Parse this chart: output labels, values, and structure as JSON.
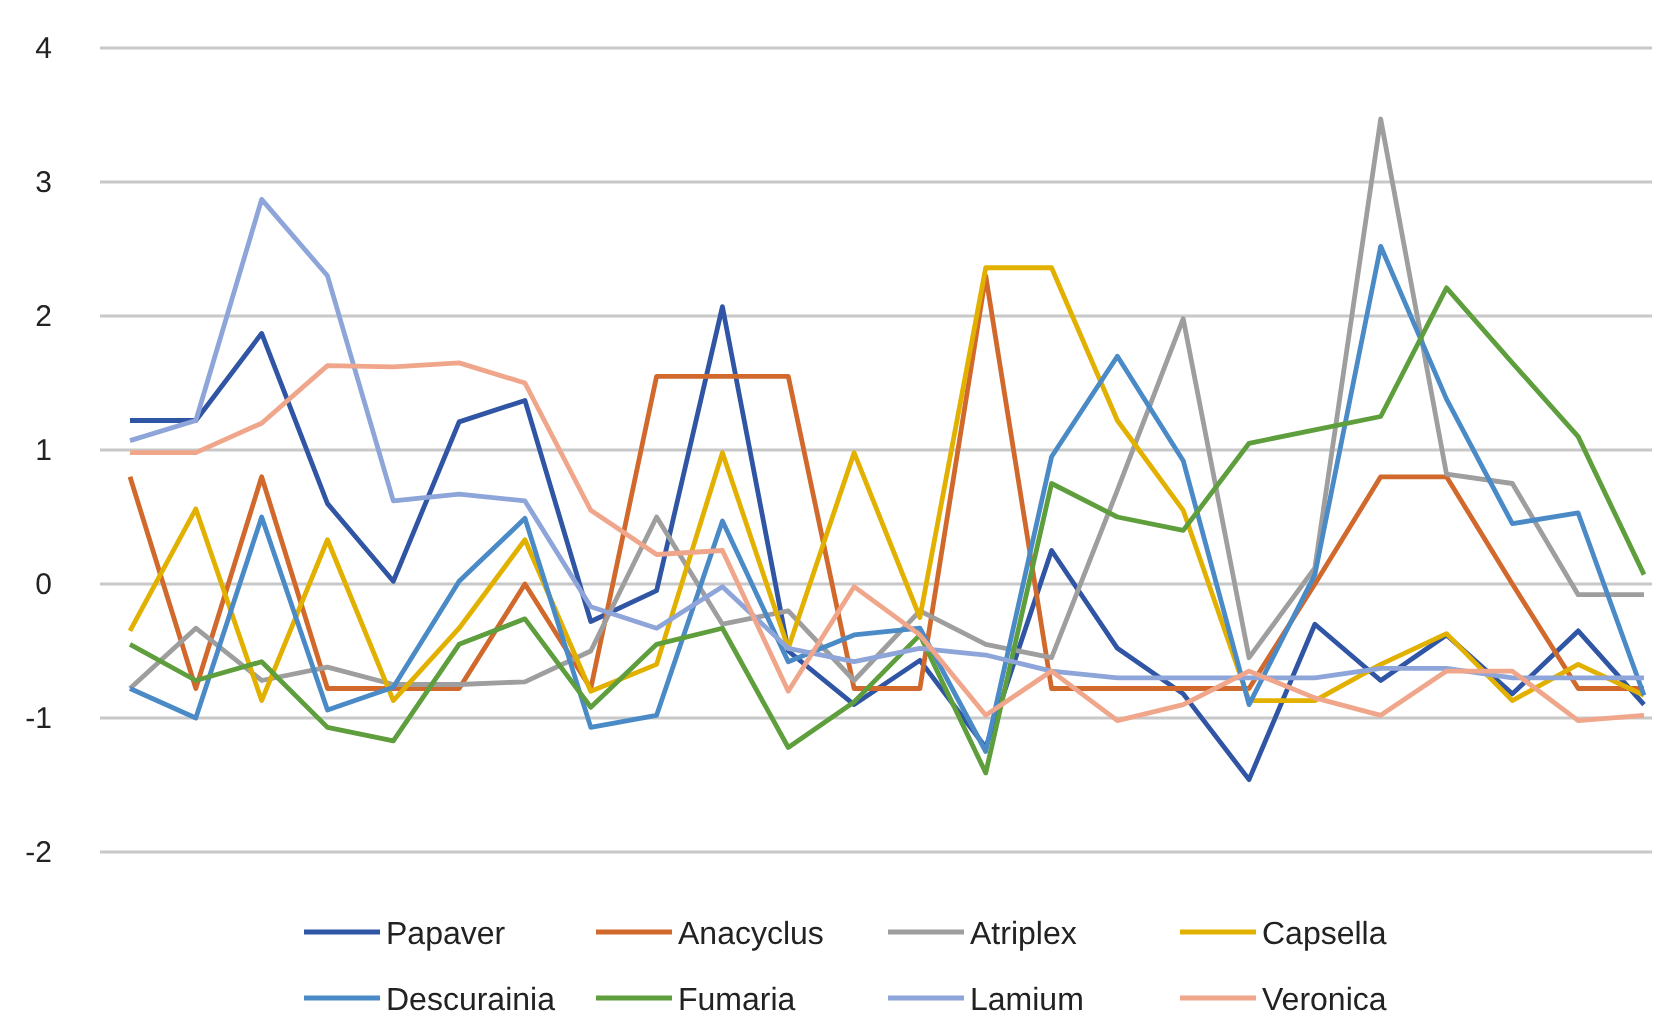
{
  "chart_data": {
    "type": "line",
    "categories": [
      null,
      null,
      null,
      null,
      null,
      null,
      null,
      null,
      null,
      null,
      null,
      null,
      null,
      null,
      null,
      null,
      null,
      null,
      null,
      null,
      null,
      null,
      null,
      null
    ],
    "ylim": [
      -2,
      4
    ],
    "yticks": [
      -2,
      -1,
      0,
      1,
      2,
      3,
      4
    ],
    "grid": "y",
    "legend": "bottom",
    "tick_labels": "y",
    "marker": "none",
    "line_style": "solid",
    "series": [
      {
        "name": "Papaver",
        "color": "#2f55a4",
        "values": [
          1.22,
          1.22,
          1.87,
          0.6,
          0.02,
          1.21,
          1.37,
          -0.28,
          -0.05,
          2.07,
          -0.5,
          -0.9,
          -0.57,
          -1.22,
          0.25,
          -0.48,
          -0.82,
          -1.46,
          -0.3,
          -0.72,
          -0.38,
          -0.82,
          -0.35,
          -0.9
        ]
      },
      {
        "name": "Anacyclus",
        "color": "#d2692c",
        "values": [
          0.8,
          -0.78,
          0.8,
          -0.78,
          -0.78,
          -0.78,
          0.0,
          -0.78,
          1.55,
          1.55,
          1.55,
          -0.78,
          -0.78,
          2.3,
          -0.78,
          -0.78,
          -0.78,
          -0.78,
          0.0,
          0.8,
          0.8,
          0.0,
          -0.78,
          -0.78
        ]
      },
      {
        "name": "Atriplex",
        "color": "#9e9e9e",
        "values": [
          -0.78,
          -0.33,
          -0.72,
          -0.62,
          -0.75,
          -0.75,
          -0.73,
          -0.5,
          0.5,
          -0.3,
          -0.2,
          -0.72,
          -0.2,
          -0.45,
          -0.55,
          0.7,
          1.98,
          -0.55,
          0.12,
          3.47,
          0.82,
          0.75,
          -0.08,
          -0.08
        ]
      },
      {
        "name": "Capsella",
        "color": "#e2b100",
        "values": [
          -0.35,
          0.56,
          -0.87,
          0.33,
          -0.87,
          -0.33,
          0.33,
          -0.8,
          -0.6,
          0.98,
          -0.48,
          0.98,
          -0.25,
          2.36,
          2.36,
          1.22,
          0.55,
          -0.87,
          -0.87,
          -0.6,
          -0.37,
          -0.87,
          -0.6,
          -0.83
        ]
      },
      {
        "name": "Descurainia",
        "color": "#4a8ac6",
        "values": [
          -0.78,
          -1.0,
          0.5,
          -0.94,
          -0.77,
          0.02,
          0.49,
          -1.07,
          -0.98,
          0.47,
          -0.58,
          -0.38,
          -0.33,
          -1.25,
          0.95,
          1.7,
          0.92,
          -0.9,
          0.07,
          2.52,
          1.38,
          0.45,
          0.53,
          -0.83
        ]
      },
      {
        "name": "Fumaria",
        "color": "#5e9e3c",
        "values": [
          -0.45,
          -0.72,
          -0.58,
          -1.07,
          -1.17,
          -0.45,
          -0.26,
          -0.92,
          -0.45,
          -0.33,
          -1.22,
          -0.88,
          -0.38,
          -1.41,
          0.75,
          0.5,
          0.4,
          1.05,
          1.15,
          1.25,
          2.21,
          1.65,
          1.1,
          0.07
        ]
      },
      {
        "name": "Lamium",
        "color": "#8ea5da",
        "values": [
          1.07,
          1.22,
          2.87,
          2.3,
          0.62,
          0.67,
          0.62,
          -0.17,
          -0.33,
          -0.02,
          -0.48,
          -0.58,
          -0.48,
          -0.53,
          -0.65,
          -0.7,
          -0.7,
          -0.7,
          -0.7,
          -0.63,
          -0.63,
          -0.7,
          -0.7,
          -0.7
        ]
      },
      {
        "name": "Veronica",
        "color": "#f0a68a",
        "values": [
          0.98,
          0.98,
          1.2,
          1.63,
          1.62,
          1.65,
          1.5,
          0.55,
          0.22,
          0.25,
          -0.8,
          -0.02,
          -0.38,
          -0.98,
          -0.65,
          -1.02,
          -0.9,
          -0.65,
          -0.85,
          -0.98,
          -0.65,
          -0.65,
          -1.02,
          -0.98
        ]
      }
    ]
  }
}
